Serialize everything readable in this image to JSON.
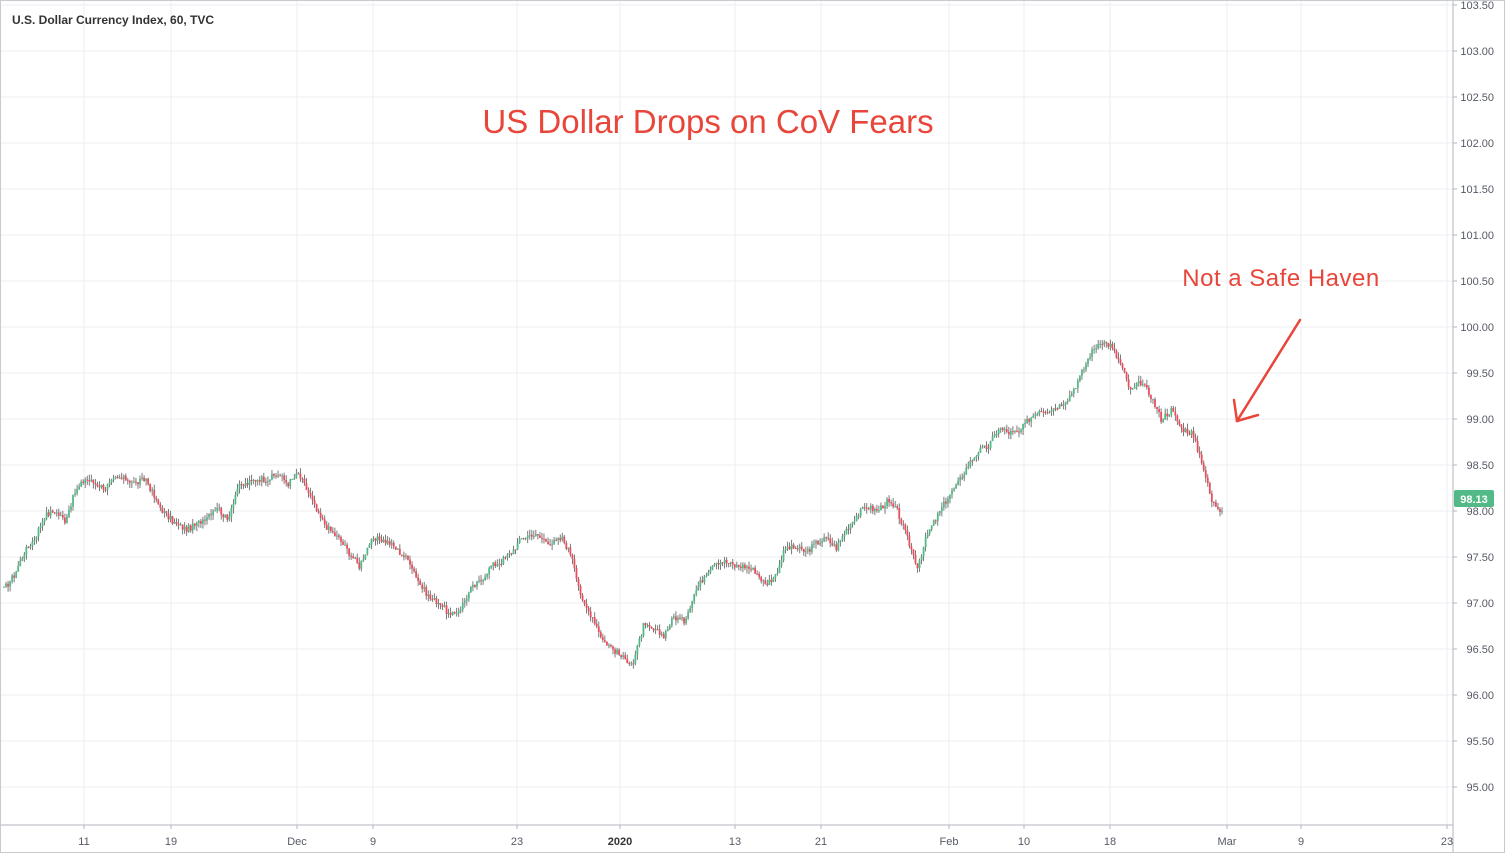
{
  "chart_data": {
    "type": "candlestick",
    "legend": "U.S. Dollar Currency Index, 60, TVC",
    "annotations": [
      {
        "text": "US Dollar Drops on CoV Fears",
        "kind": "title"
      },
      {
        "text": "Not a Safe Haven",
        "kind": "note-with-arrow"
      }
    ],
    "ylim": [
      94.6,
      103.5
    ],
    "y_ticks": [
      "103.50",
      "103.00",
      "102.50",
      "102.00",
      "101.50",
      "101.00",
      "100.50",
      "100.00",
      "99.50",
      "99.00",
      "98.50",
      "98.00",
      "97.50",
      "97.00",
      "96.50",
      "96.00",
      "95.50",
      "95.00"
    ],
    "x_ticks": [
      {
        "label": "11",
        "bold": false
      },
      {
        "label": "19",
        "bold": false
      },
      {
        "label": "Dec",
        "bold": false
      },
      {
        "label": "9",
        "bold": false
      },
      {
        "label": "23",
        "bold": false
      },
      {
        "label": "2020",
        "bold": true
      },
      {
        "label": "13",
        "bold": false
      },
      {
        "label": "21",
        "bold": false
      },
      {
        "label": "Feb",
        "bold": false
      },
      {
        "label": "10",
        "bold": false
      },
      {
        "label": "18",
        "bold": false
      },
      {
        "label": "Mar",
        "bold": false
      },
      {
        "label": "9",
        "bold": false
      },
      {
        "label": "23",
        "bold": false
      }
    ],
    "last_price": "98.13",
    "colors": {
      "up": "#53b987",
      "down": "#eb4d5c",
      "wick": "#5a5a5a",
      "badge": "#53b987",
      "annotation": "#e8463a",
      "grid": "#ebedf0"
    },
    "series": [
      {
        "values": [
          97.15,
          97.3,
          97.55,
          97.7,
          97.95,
          98.0,
          97.9,
          98.2,
          98.35,
          98.3,
          98.25,
          98.35,
          98.35,
          98.3,
          98.35,
          98.1,
          97.95,
          97.85,
          97.8,
          97.85,
          97.95,
          98.05,
          97.9,
          98.25,
          98.3,
          98.35,
          98.35,
          98.4,
          98.3,
          98.4,
          98.2,
          97.95,
          97.8,
          97.7,
          97.55,
          97.4,
          97.65,
          97.7,
          97.65,
          97.55,
          97.45,
          97.2,
          97.05,
          97.0,
          96.85,
          96.95,
          97.15,
          97.25,
          97.4,
          97.45,
          97.55,
          97.7,
          97.75,
          97.7,
          97.65,
          97.7,
          97.5,
          97.0,
          96.85,
          96.6,
          96.5,
          96.4,
          96.35,
          96.75,
          96.7,
          96.65,
          96.85,
          96.8,
          97.1,
          97.3,
          97.45,
          97.45,
          97.4,
          97.4,
          97.35,
          97.2,
          97.3,
          97.6,
          97.6,
          97.55,
          97.65,
          97.7,
          97.6,
          97.8,
          97.95,
          98.05,
          98.0,
          98.1,
          98.0,
          97.7,
          97.4,
          97.75,
          97.95,
          98.15,
          98.3,
          98.5,
          98.65,
          98.7,
          98.9,
          98.85,
          98.85,
          99.0,
          99.1,
          99.1,
          99.15,
          99.25,
          99.45,
          99.7,
          99.85,
          99.8,
          99.6,
          99.3,
          99.4,
          99.25,
          99.0,
          99.1,
          98.9,
          98.85,
          98.55,
          98.1,
          98.0
        ]
      }
    ]
  }
}
